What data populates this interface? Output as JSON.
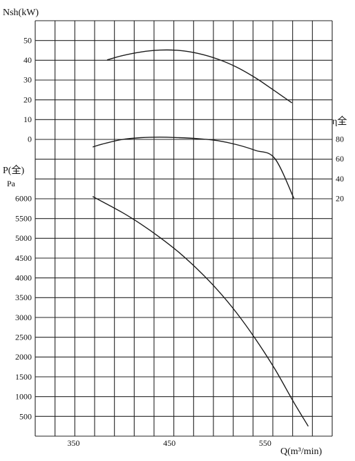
{
  "chart_data": {
    "type": "line",
    "x_axis": {
      "label": "Q(m³/min)",
      "ticks": [
        350,
        450,
        550
      ],
      "range": [
        310,
        620
      ]
    },
    "power_axis": {
      "label": "Nsh(kW)",
      "ticks": [
        0,
        10,
        20,
        30,
        40,
        50
      ],
      "range": [
        -10,
        60
      ]
    },
    "efficiency_axis": {
      "label": "η全",
      "ticks": [
        20,
        40,
        60,
        80
      ],
      "range": [
        0,
        100
      ]
    },
    "pressure_axis": {
      "label": "P(全)",
      "unit": "Pa",
      "ticks": [
        500,
        1000,
        1500,
        2000,
        2500,
        3000,
        3500,
        4000,
        4500,
        5000,
        5500,
        6000
      ],
      "range": [
        0,
        6500
      ]
    },
    "grid": true,
    "series": [
      {
        "axis": "power",
        "x": [
          385,
          400,
          420,
          440,
          460,
          480,
          500,
          520,
          540,
          560,
          578
        ],
        "y": [
          40.1,
          42.2,
          44.1,
          45.1,
          44.9,
          43.4,
          40.6,
          36.5,
          31.0,
          24.4,
          18.3
        ]
      },
      {
        "axis": "efficiency",
        "x": [
          370,
          380,
          400,
          420,
          440,
          460,
          480,
          500,
          520,
          540,
          560,
          580
        ],
        "y": [
          72,
          75,
          79.5,
          81.5,
          82,
          81.5,
          80.5,
          78.5,
          74.5,
          68.5,
          60.5,
          20
        ]
      },
      {
        "axis": "pressure",
        "x": [
          370,
          400,
          420,
          440,
          460,
          480,
          500,
          520,
          540,
          560,
          580,
          595
        ],
        "y": [
          6050,
          5660,
          5360,
          5020,
          4640,
          4200,
          3700,
          3120,
          2450,
          1700,
          850,
          250
        ]
      }
    ]
  }
}
